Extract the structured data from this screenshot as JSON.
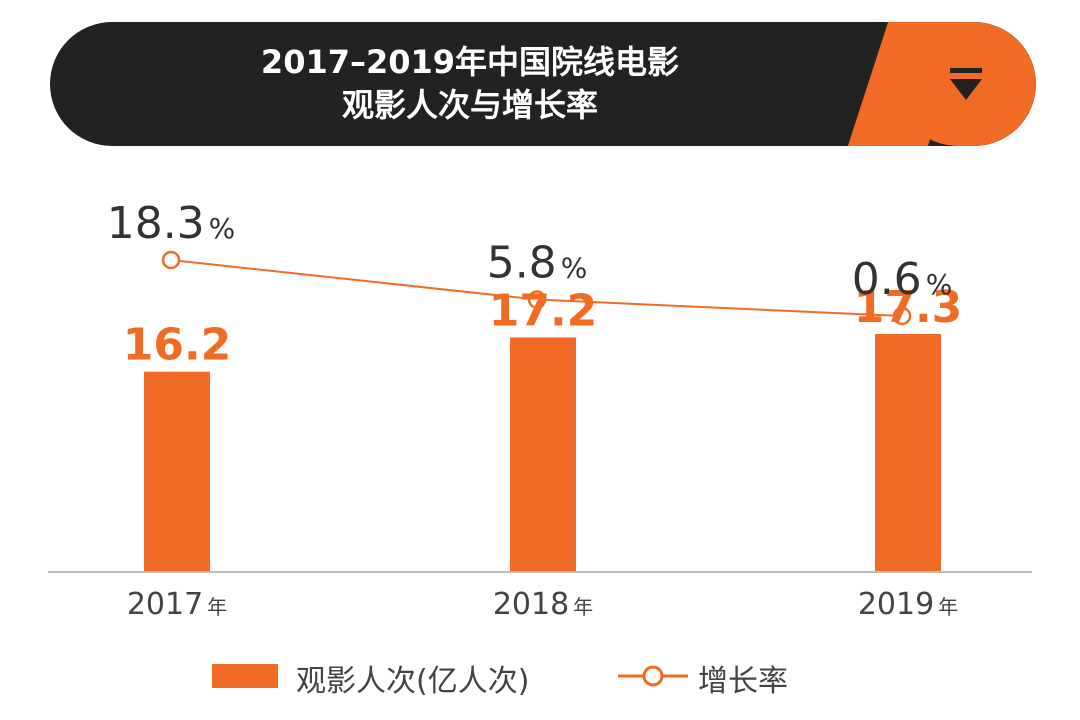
{
  "header": {
    "title_line1": "2017–2019年中国院线电影",
    "title_line2": "观影人次与增长率",
    "filter_icon": "filter-icon"
  },
  "colors": {
    "accent": "#f26b24",
    "dark": "#222222",
    "text": "#333333"
  },
  "chart_data": {
    "type": "bar",
    "title": "2017–2019年中国院线电影观影人次与增长率",
    "categories": [
      "2017",
      "2018",
      "2019"
    ],
    "category_suffix": "年",
    "series": [
      {
        "name": "观影人次(亿人次)",
        "type": "bar",
        "values": [
          16.2,
          17.2,
          17.3
        ]
      },
      {
        "name": "增长率",
        "type": "line",
        "unit": "%",
        "values": [
          18.3,
          5.8,
          0.6
        ]
      }
    ],
    "legend": [
      {
        "label": "观影人次(亿人次)",
        "marker": "bar"
      },
      {
        "label": "增长率",
        "marker": "line-circle"
      }
    ]
  }
}
